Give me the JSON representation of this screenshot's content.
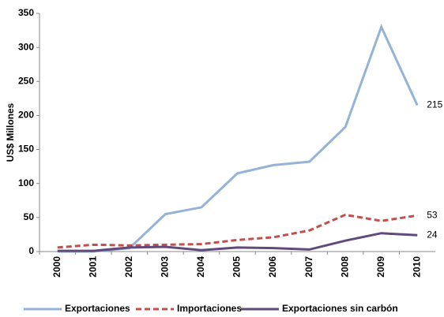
{
  "chart_data": {
    "type": "line",
    "y_label": "US$ Millones",
    "categories": [
      "2000",
      "2001",
      "2002",
      "2003",
      "2004",
      "2005",
      "2006",
      "2007",
      "2008",
      "2009",
      "2010"
    ],
    "series": [
      {
        "name": "Exportaciones",
        "color": "#95b3d7",
        "style": "solid",
        "values": [
          0,
          0,
          5,
          55,
          65,
          115,
          127,
          132,
          183,
          330,
          215
        ]
      },
      {
        "name": "Importaciones",
        "color": "#c0504d",
        "style": "dashed",
        "values": [
          6,
          10,
          9,
          10,
          11,
          17,
          21,
          31,
          54,
          45,
          53
        ]
      },
      {
        "name": "Exportaciones sin carbón",
        "color": "#604a7b",
        "style": "solid",
        "values": [
          1,
          1,
          6,
          7,
          2,
          6,
          5,
          3,
          16,
          27,
          24
        ]
      }
    ],
    "ylim": [
      0,
      350
    ],
    "yticks": [
      0,
      50,
      100,
      150,
      200,
      250,
      300,
      350
    ],
    "legend": "bottom"
  }
}
